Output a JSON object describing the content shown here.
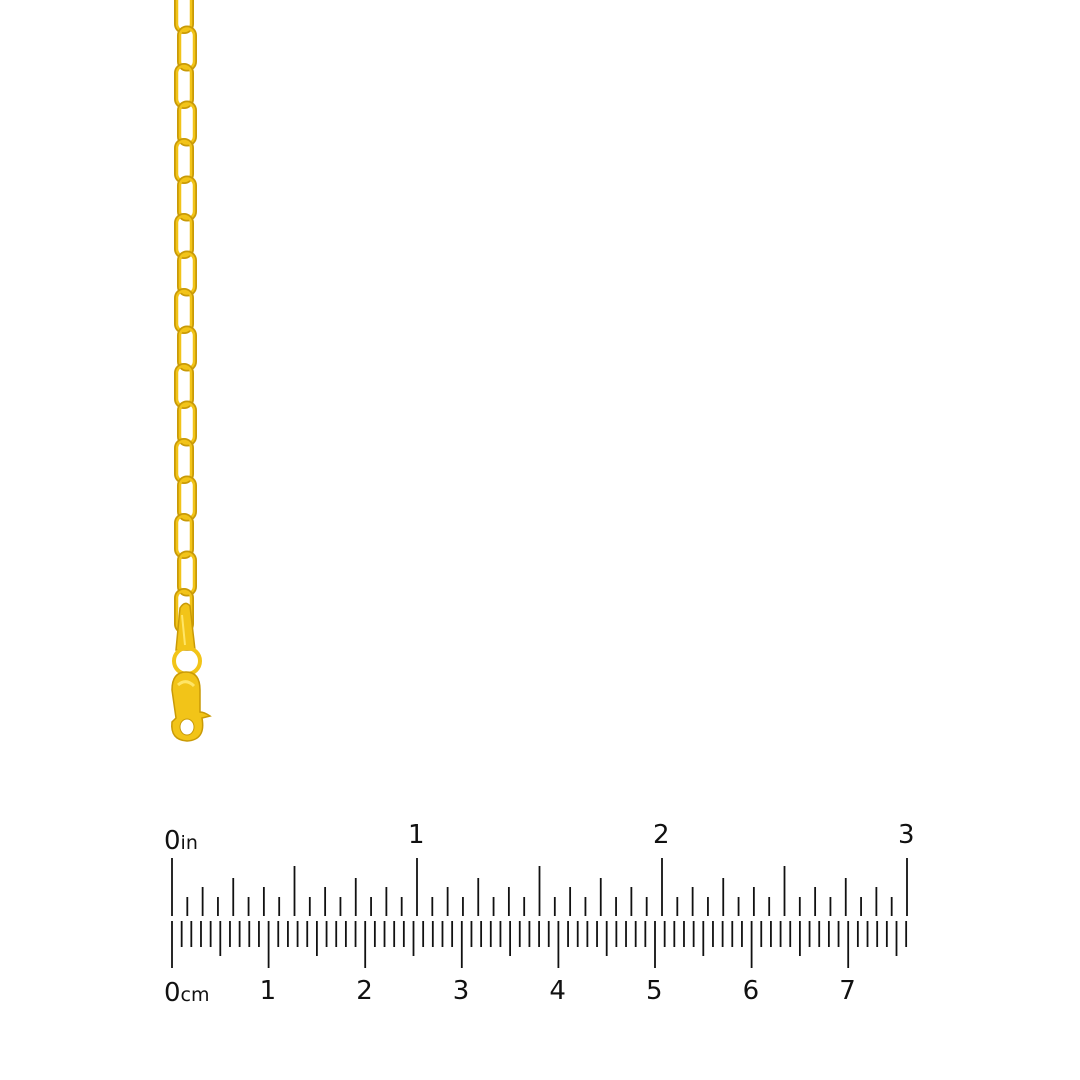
{
  "product": {
    "metal_color": "#F2C418",
    "highlight_color": "#FFE566",
    "shadow_color": "#C99A06"
  },
  "ruler": {
    "inch": {
      "zero": "0",
      "unit": "in",
      "labels": [
        "1",
        "2",
        "3"
      ],
      "max": 3,
      "subdivisions": 16
    },
    "cm": {
      "zero": "0",
      "unit": "cm",
      "labels": [
        "1",
        "2",
        "3",
        "4",
        "5",
        "6",
        "7"
      ],
      "max_mm": 76
    },
    "tick_color": "#111111"
  }
}
